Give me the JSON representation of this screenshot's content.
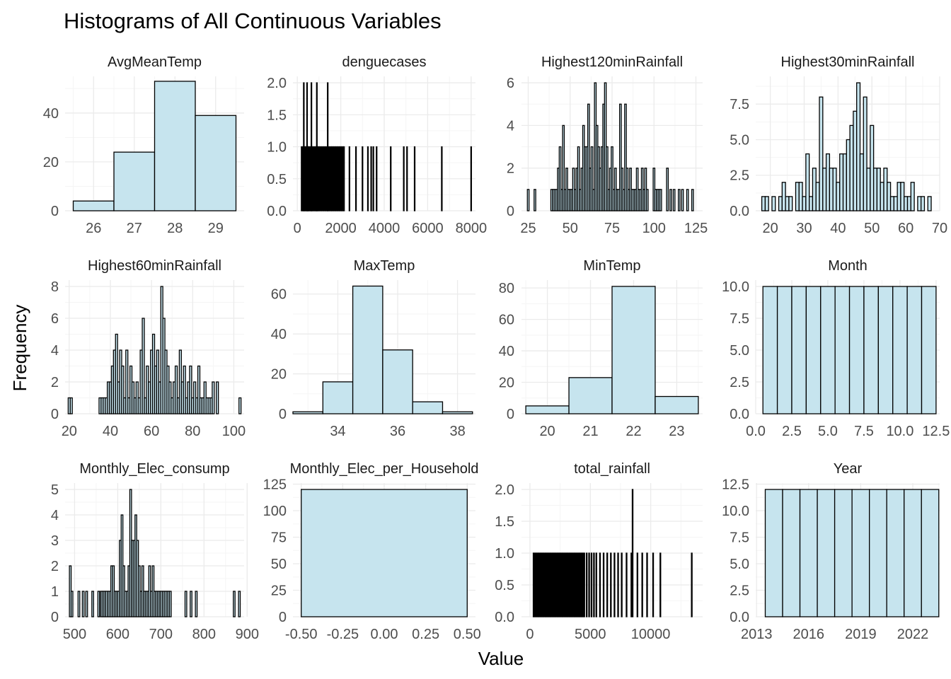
{
  "figure": {
    "title": "Histograms of All Continuous Variables",
    "xlabel": "Value",
    "ylabel": "Frequency",
    "bar_fill": "#c6e4ee",
    "bar_stroke": "#000000",
    "grid_major": "#ebebeb",
    "grid_minor": "#f5f5f5"
  },
  "chart_data": [
    {
      "type": "bar",
      "title": "AvgMeanTemp",
      "xlim": [
        25.3,
        29.7
      ],
      "ylim": [
        0,
        55
      ],
      "xticks": [
        26,
        27,
        28,
        29
      ],
      "xtick_labels": [
        "26",
        "27",
        "28",
        "29"
      ],
      "yticks": [
        0,
        20,
        40
      ],
      "ytick_labels": [
        "0",
        "20",
        "40"
      ],
      "bin_width": 1,
      "x": [
        26,
        27,
        28,
        29
      ],
      "values": [
        4,
        24,
        53,
        39
      ]
    },
    {
      "type": "bar",
      "title": "denguecases",
      "xlim": [
        -200,
        8200
      ],
      "ylim": [
        0,
        2.1
      ],
      "xticks": [
        0,
        2000,
        4000,
        6000,
        8000
      ],
      "xtick_labels": [
        "0",
        "2000",
        "4000",
        "6000",
        "8000"
      ],
      "yticks": [
        0,
        0.5,
        1.0,
        1.5,
        2.0
      ],
      "ytick_labels": [
        "0.0",
        "0.5",
        "1.0",
        "1.5",
        "2.0"
      ],
      "bin_width": 30,
      "x": [
        200,
        240,
        280,
        330,
        360,
        400,
        440,
        470,
        500,
        520,
        560,
        600,
        640,
        680,
        720,
        760,
        800,
        840,
        880,
        920,
        960,
        1000,
        1050,
        1100,
        1150,
        1200,
        1250,
        1300,
        1350,
        1400,
        1450,
        1500,
        1560,
        1600,
        1650,
        1700,
        1750,
        1800,
        1850,
        1900,
        1950,
        2000,
        2050,
        2100,
        2150,
        2400,
        2700,
        3000,
        3250,
        3400,
        3500,
        3650,
        4300,
        4900,
        5050,
        5400,
        6650,
        8000,
        300,
        450,
        650,
        900,
        1400
      ],
      "values": [
        1,
        1,
        1,
        1,
        1,
        1,
        1,
        1,
        1,
        1,
        1,
        1,
        1,
        1,
        1,
        1,
        1,
        1,
        1,
        1,
        1,
        1,
        1,
        1,
        1,
        1,
        1,
        1,
        1,
        1,
        1,
        1,
        1,
        1,
        1,
        1,
        1,
        1,
        1,
        1,
        1,
        1,
        1,
        1,
        1,
        1,
        1,
        1,
        1,
        1,
        1,
        1,
        1,
        1,
        1,
        1,
        1,
        1,
        2,
        2,
        2,
        2,
        2
      ]
    },
    {
      "type": "bar",
      "title": "Highest120minRainfall",
      "xlim": [
        21,
        129
      ],
      "ylim": [
        0,
        6.3
      ],
      "xticks": [
        25,
        50,
        75,
        100,
        125
      ],
      "xtick_labels": [
        "25",
        "50",
        "75",
        "100",
        "125"
      ],
      "yticks": [
        0,
        2,
        4,
        6
      ],
      "ytick_labels": [
        "0",
        "2",
        "4",
        "6"
      ],
      "bin_width": 1,
      "x": [
        25,
        29,
        39,
        40,
        41,
        42,
        43,
        44,
        45,
        46,
        47,
        48,
        49,
        50,
        51,
        52,
        53,
        54,
        55,
        56,
        57,
        58,
        59,
        60,
        61,
        62,
        63,
        64,
        65,
        66,
        67,
        68,
        69,
        70,
        71,
        72,
        73,
        74,
        75,
        76,
        77,
        78,
        79,
        80,
        81,
        82,
        83,
        84,
        85,
        86,
        87,
        88,
        89,
        90,
        91,
        92,
        93,
        94,
        95,
        96,
        100,
        101,
        102,
        103,
        104,
        108,
        110,
        112,
        115,
        117,
        120,
        123
      ],
      "values": [
        1,
        1,
        1,
        1,
        1,
        1,
        2,
        3,
        1,
        4,
        1,
        2,
        1,
        1,
        1,
        2,
        1,
        2,
        3,
        1,
        2,
        4,
        3,
        3,
        5,
        2,
        3,
        1,
        6,
        4,
        3,
        2,
        3,
        5,
        6,
        3,
        1,
        2,
        3,
        1,
        2,
        1,
        1,
        5,
        2,
        1,
        5,
        2,
        1,
        2,
        1,
        1,
        1,
        2,
        1,
        1,
        2,
        1,
        2,
        1,
        2,
        1,
        1,
        1,
        1,
        2,
        1,
        1,
        1,
        1,
        1,
        1
      ]
    },
    {
      "type": "bar",
      "title": "Highest30minRainfall",
      "xlim": [
        15.7,
        70
      ],
      "ylim": [
        0,
        9.45
      ],
      "xticks": [
        20,
        30,
        40,
        50,
        60,
        70
      ],
      "xtick_labels": [
        "20",
        "30",
        "40",
        "50",
        "60",
        "70"
      ],
      "yticks": [
        0,
        2.5,
        5.0,
        7.5
      ],
      "ytick_labels": [
        "0.0",
        "2.5",
        "5.0",
        "7.5"
      ],
      "bin_width": 1,
      "x": [
        18,
        19,
        20,
        21,
        22,
        23,
        24,
        25,
        26,
        27,
        28,
        29,
        30,
        31,
        32,
        33,
        34,
        35,
        36,
        37,
        38,
        39,
        40,
        41,
        42,
        43,
        44,
        45,
        46,
        47,
        48,
        49,
        50,
        51,
        52,
        53,
        54,
        55,
        56,
        57,
        58,
        59,
        60,
        61,
        62,
        63,
        64,
        65,
        66,
        67
      ],
      "values": [
        1,
        1,
        0,
        1,
        0,
        1,
        2,
        1,
        1,
        0,
        2,
        2,
        1,
        4,
        1,
        3,
        2,
        8,
        3,
        4,
        3,
        3,
        2,
        4,
        4,
        5,
        6,
        7,
        9,
        4,
        8,
        3,
        6,
        3,
        3,
        2,
        3,
        2,
        1,
        1,
        2,
        2,
        1,
        1,
        2,
        0,
        1,
        1,
        0,
        1
      ]
    },
    {
      "type": "bar",
      "title": "Highest60minRainfall",
      "xlim": [
        18,
        105
      ],
      "ylim": [
        0,
        8.4
      ],
      "xticks": [
        20,
        40,
        60,
        80,
        100
      ],
      "xtick_labels": [
        "20",
        "40",
        "60",
        "80",
        "100"
      ],
      "yticks": [
        0,
        2,
        4,
        6,
        8
      ],
      "ytick_labels": [
        "0",
        "2",
        "4",
        "6",
        "8"
      ],
      "bin_width": 1,
      "x": [
        20,
        21,
        35,
        36,
        37,
        38,
        39,
        40,
        41,
        42,
        43,
        44,
        45,
        46,
        47,
        48,
        49,
        50,
        51,
        52,
        53,
        54,
        55,
        56,
        57,
        58,
        59,
        60,
        61,
        62,
        63,
        64,
        65,
        66,
        67,
        68,
        69,
        70,
        71,
        72,
        73,
        74,
        75,
        76,
        77,
        78,
        79,
        80,
        81,
        82,
        83,
        84,
        85,
        86,
        87,
        88,
        89,
        90,
        92,
        103
      ],
      "values": [
        1,
        1,
        1,
        1,
        1,
        1,
        2,
        2,
        3,
        4,
        5,
        2,
        4,
        3,
        1,
        4,
        1,
        3,
        2,
        1,
        2,
        1,
        4,
        6,
        1,
        3,
        2,
        4,
        5,
        3,
        4,
        2,
        8,
        6,
        4,
        3,
        2,
        1,
        2,
        3,
        1,
        4,
        2,
        3,
        1,
        2,
        3,
        1,
        2,
        1,
        3,
        1,
        1,
        2,
        1,
        1,
        1,
        2,
        2,
        1
      ]
    },
    {
      "type": "bar",
      "title": "MaxTemp",
      "xlim": [
        32.5,
        38.6
      ],
      "ylim": [
        0,
        67
      ],
      "xticks": [
        34,
        36,
        38
      ],
      "xtick_labels": [
        "34",
        "36",
        "38"
      ],
      "yticks": [
        0,
        20,
        40,
        60
      ],
      "ytick_labels": [
        "0",
        "20",
        "40",
        "60"
      ],
      "bin_width": 1,
      "x": [
        33,
        34,
        35,
        36,
        37,
        38
      ],
      "values": [
        1,
        16,
        64,
        32,
        6,
        1
      ]
    },
    {
      "type": "bar",
      "title": "MinTemp",
      "xlim": [
        19.4,
        23.6
      ],
      "ylim": [
        0,
        85
      ],
      "xticks": [
        20,
        21,
        22,
        23
      ],
      "xtick_labels": [
        "20",
        "21",
        "22",
        "23"
      ],
      "yticks": [
        0,
        20,
        40,
        60,
        80
      ],
      "ytick_labels": [
        "0",
        "20",
        "40",
        "60",
        "80"
      ],
      "bin_width": 1,
      "x": [
        20,
        21,
        22,
        23
      ],
      "values": [
        5,
        23,
        81,
        11
      ]
    },
    {
      "type": "bar",
      "title": "Month",
      "xlim": [
        0,
        12.75
      ],
      "ylim": [
        0,
        10.5
      ],
      "xticks": [
        0,
        2.5,
        5.0,
        7.5,
        10.0,
        12.5
      ],
      "xtick_labels": [
        "0.0",
        "2.5",
        "5.0",
        "7.5",
        "10.0",
        "12.5"
      ],
      "yticks": [
        0,
        2.5,
        5.0,
        7.5,
        10.0
      ],
      "ytick_labels": [
        "0.0",
        "2.5",
        "5.0",
        "7.5",
        "10.0"
      ],
      "bin_width": 1,
      "x": [
        1,
        2,
        3,
        4,
        5,
        6,
        7,
        8,
        9,
        10,
        11,
        12
      ],
      "values": [
        10,
        10,
        10,
        10,
        10,
        10,
        10,
        10,
        10,
        10,
        10,
        10
      ]
    },
    {
      "type": "bar",
      "title": "Monthly_Elec_consump",
      "xlim": [
        478,
        893
      ],
      "ylim": [
        0,
        5.25
      ],
      "xticks": [
        500,
        600,
        700,
        800,
        900
      ],
      "xtick_labels": [
        "500",
        "600",
        "700",
        "800",
        "900"
      ],
      "yticks": [
        0,
        1,
        2,
        3,
        4,
        5
      ],
      "ytick_labels": [
        "0",
        "1",
        "2",
        "3",
        "4",
        "5"
      ],
      "bin_width": 4,
      "x": [
        490,
        494,
        510,
        520,
        528,
        542,
        556,
        562,
        566,
        570,
        574,
        578,
        582,
        586,
        590,
        594,
        598,
        602,
        606,
        610,
        614,
        618,
        622,
        626,
        630,
        634,
        638,
        642,
        646,
        650,
        654,
        658,
        662,
        666,
        670,
        674,
        678,
        682,
        686,
        690,
        694,
        698,
        702,
        706,
        710,
        714,
        718,
        722,
        758,
        770,
        782,
        870,
        882
      ],
      "values": [
        2,
        1,
        1,
        1,
        1,
        1,
        1,
        1,
        1,
        1,
        1,
        1,
        1,
        2,
        2,
        1,
        1,
        1,
        3,
        4,
        2,
        1,
        1,
        2,
        5,
        3,
        3,
        4,
        3,
        2,
        1,
        2,
        1,
        1,
        1,
        2,
        1,
        2,
        1,
        1,
        1,
        1,
        1,
        1,
        1,
        1,
        1,
        1,
        1,
        1,
        1,
        1,
        1
      ]
    },
    {
      "type": "bar",
      "title": "Monthly_Elec_per_Household",
      "xlim": [
        -0.55,
        0.55
      ],
      "ylim": [
        0,
        126
      ],
      "xticks": [
        -0.5,
        -0.25,
        0,
        0.25,
        0.5
      ],
      "xtick_labels": [
        "-0.50",
        "-0.25",
        "0.00",
        "0.25",
        "0.50"
      ],
      "yticks": [
        0,
        25,
        50,
        75,
        100,
        125
      ],
      "ytick_labels": [
        "0",
        "25",
        "50",
        "75",
        "100",
        "125"
      ],
      "bin_width": 1,
      "x": [
        0
      ],
      "values": [
        120
      ]
    },
    {
      "type": "bar",
      "title": "total_rainfall",
      "xlim": [
        -700,
        14300
      ],
      "ylim": [
        0,
        2.1
      ],
      "xticks": [
        0,
        5000,
        10000
      ],
      "xtick_labels": [
        "0",
        "5000",
        "10000"
      ],
      "yticks": [
        0,
        0.5,
        1.0,
        1.5,
        2.0
      ],
      "ytick_labels": [
        "0.0",
        "0.5",
        "1.0",
        "1.5",
        "2.0"
      ],
      "bin_width": 60,
      "x": [
        300,
        400,
        500,
        600,
        700,
        800,
        900,
        1000,
        1100,
        1200,
        1300,
        1400,
        1500,
        1600,
        1700,
        1800,
        1900,
        2000,
        2100,
        2200,
        2300,
        2400,
        2500,
        2600,
        2700,
        2800,
        2900,
        3000,
        3100,
        3200,
        3300,
        3400,
        3500,
        3600,
        3700,
        3800,
        3900,
        4000,
        4100,
        4200,
        4300,
        4400,
        4500,
        4700,
        4900,
        5100,
        5300,
        5500,
        5800,
        6100,
        6400,
        6700,
        7000,
        7300,
        7600,
        8000,
        8400,
        8900,
        9300,
        9700,
        10200,
        10800,
        13400,
        8500
      ],
      "values": [
        1,
        1,
        1,
        1,
        1,
        1,
        1,
        1,
        1,
        1,
        1,
        1,
        1,
        1,
        1,
        1,
        1,
        1,
        1,
        1,
        1,
        1,
        1,
        1,
        1,
        1,
        1,
        1,
        1,
        1,
        1,
        1,
        1,
        1,
        1,
        1,
        1,
        1,
        1,
        1,
        1,
        1,
        1,
        1,
        1,
        1,
        1,
        1,
        1,
        1,
        1,
        1,
        1,
        1,
        1,
        1,
        1,
        1,
        1,
        1,
        1,
        1,
        1,
        2
      ]
    },
    {
      "type": "bar",
      "title": "Year",
      "xlim": [
        2012.95,
        2023.55
      ],
      "ylim": [
        0,
        12.6
      ],
      "xticks": [
        2013,
        2016,
        2019,
        2022
      ],
      "xtick_labels": [
        "2013",
        "2016",
        "2019",
        "2022"
      ],
      "yticks": [
        0,
        2.5,
        5.0,
        7.5,
        10.0,
        12.5
      ],
      "ytick_labels": [
        "0.0",
        "2.5",
        "5.0",
        "7.5",
        "10.0",
        "12.5"
      ],
      "bin_width": 1,
      "x": [
        2014,
        2015,
        2016,
        2017,
        2018,
        2019,
        2020,
        2021,
        2022,
        2023
      ],
      "values": [
        12,
        12,
        12,
        12,
        12,
        12,
        12,
        12,
        12,
        12
      ]
    }
  ]
}
